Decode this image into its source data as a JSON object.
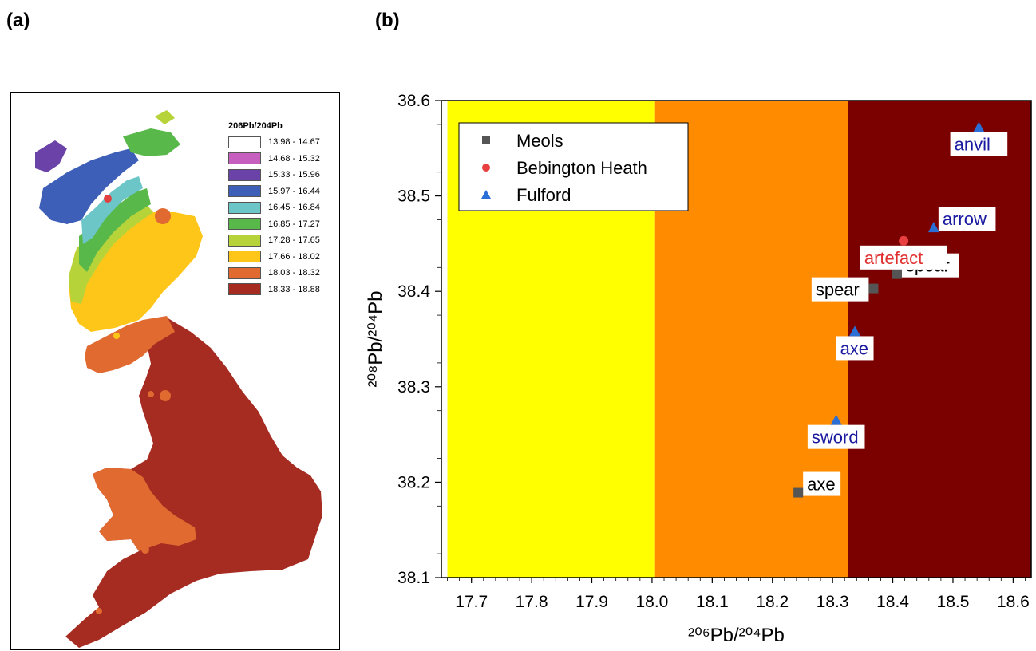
{
  "panels": {
    "a_label": "(a)",
    "b_label": "(b)"
  },
  "map": {
    "legend_title": "206Pb/204Pb",
    "legend": [
      {
        "range": "13.98 - 14.67",
        "color": "#ffffff"
      },
      {
        "range": "14.68 - 15.32",
        "color": "#c65fbf"
      },
      {
        "range": "15.33 - 15.96",
        "color": "#6a42a8"
      },
      {
        "range": "15.97 - 16.44",
        "color": "#3d5fb8"
      },
      {
        "range": "16.45 - 16.84",
        "color": "#6cc6c8"
      },
      {
        "range": "16.85 - 17.27",
        "color": "#58b84a"
      },
      {
        "range": "17.28 - 17.65",
        "color": "#b7d33a"
      },
      {
        "range": "17.66 - 18.02",
        "color": "#ffc61a"
      },
      {
        "range": "18.03 - 18.32",
        "color": "#e06a30"
      },
      {
        "range": "18.33 - 18.88",
        "color": "#a62c22"
      }
    ]
  },
  "chart_data": {
    "type": "scatter",
    "xlabel": "²⁰⁶Pb/²⁰⁴Pb",
    "ylabel": "²⁰⁸Pb/²⁰⁴Pb",
    "xlim": [
      17.65,
      18.63
    ],
    "ylim": [
      38.1,
      38.6
    ],
    "xticks": [
      17.7,
      17.8,
      17.9,
      18.0,
      18.1,
      18.2,
      18.3,
      18.4,
      18.5,
      18.6
    ],
    "xtick_labels": [
      "17.7",
      "17.8",
      "17.9",
      "18.0",
      "18.1",
      "18.2",
      "18.3",
      "18.4",
      "18.5",
      "18.6"
    ],
    "yticks": [
      38.1,
      38.2,
      38.3,
      38.4,
      38.5,
      38.6
    ],
    "ytick_labels": [
      "38.1",
      "38.2",
      "38.3",
      "38.4",
      "38.5",
      "38.6"
    ],
    "background_bands": [
      {
        "x0": 17.66,
        "x1": 18.005,
        "color": "#ffff00"
      },
      {
        "x0": 18.005,
        "x1": 18.325,
        "color": "#ff8c00"
      },
      {
        "x0": 18.325,
        "x1": 18.63,
        "color": "#7b0000"
      }
    ],
    "legend_position": "top-left",
    "series": [
      {
        "name": "Meols",
        "marker": "square",
        "color": "#555555",
        "label_color": "#000000",
        "points": [
          {
            "x": 18.243,
            "y": 38.189,
            "label": "axe",
            "label_pos": "right"
          },
          {
            "x": 18.368,
            "y": 38.403,
            "label": "spear",
            "label_pos": "left"
          },
          {
            "x": 18.407,
            "y": 38.418,
            "label": "spear",
            "label_pos": "right"
          }
        ]
      },
      {
        "name": "Bebington Heath",
        "marker": "circle",
        "color": "#e84040",
        "label_color": "#e03030",
        "points": [
          {
            "x": 18.418,
            "y": 38.453,
            "label": "artefact",
            "label_pos": "below"
          }
        ]
      },
      {
        "name": "Fulford",
        "marker": "triangle",
        "color": "#2a6fd6",
        "label_color": "#1a1aa0",
        "points": [
          {
            "x": 18.306,
            "y": 38.265,
            "label": "sword",
            "label_pos": "below"
          },
          {
            "x": 18.337,
            "y": 38.358,
            "label": "axe",
            "label_pos": "below"
          },
          {
            "x": 18.468,
            "y": 38.467,
            "label": "arrow",
            "label_pos": "right"
          },
          {
            "x": 18.543,
            "y": 38.572,
            "label": "anvil",
            "label_pos": "below"
          }
        ]
      }
    ]
  }
}
